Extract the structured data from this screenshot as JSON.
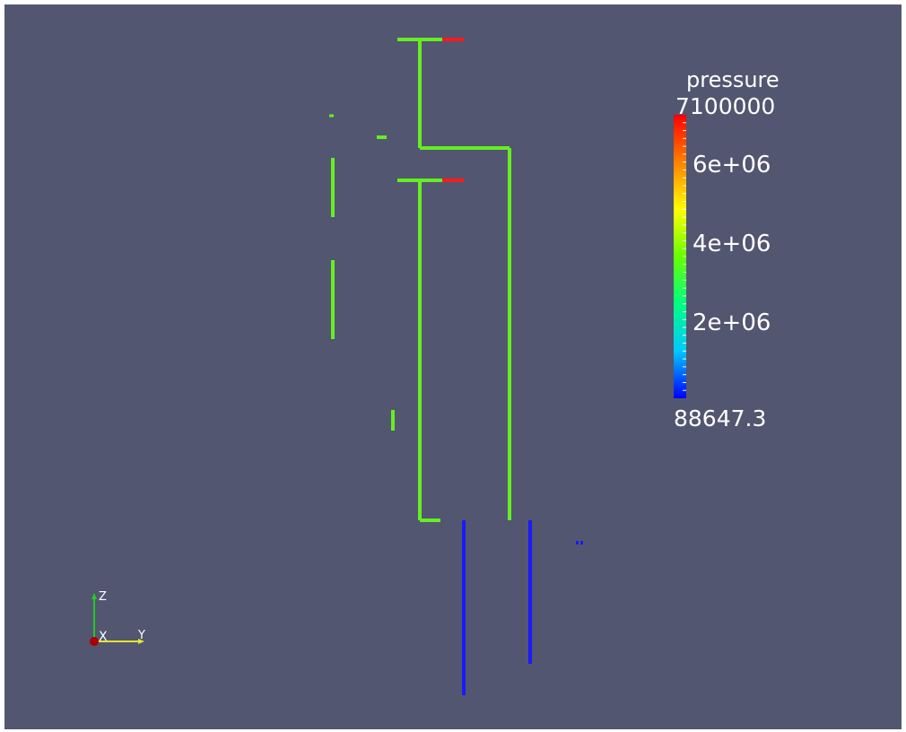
{
  "viewport": {
    "background_color": "#525670",
    "scalar_field": "pressure"
  },
  "legend": {
    "title": "pressure",
    "max_label": "7100000",
    "min_label": "88647.3",
    "tick_labels": [
      "6e+06",
      "4e+06",
      "2e+06"
    ],
    "range": [
      88647.3,
      7100000
    ],
    "colormap": [
      "#0000ff",
      "#00c8ff",
      "#00ff80",
      "#66ff00",
      "#ffff00",
      "#ff8000",
      "#ff0000"
    ]
  },
  "orientation_axes": {
    "x_label": "X",
    "y_label": "Y",
    "z_label": "Z",
    "z_color": "#22cc22",
    "y_color": "#e6e62e",
    "x_color": "#aa0000"
  },
  "colors": {
    "pipe_green": "#66ee22",
    "pipe_red": "#ff1a1a",
    "pipe_blue": "#1a1aff"
  }
}
